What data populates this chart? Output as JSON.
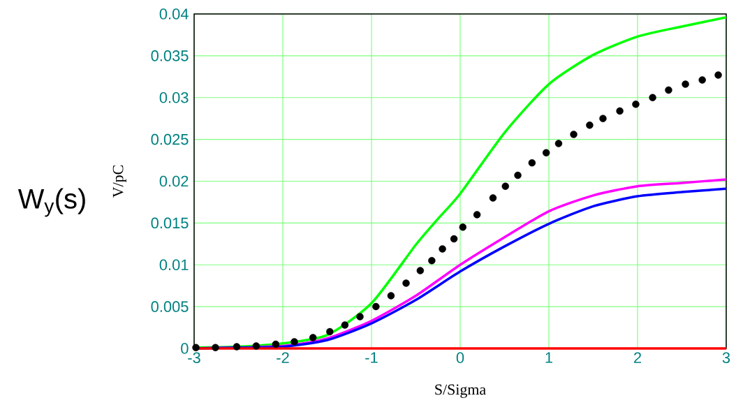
{
  "chart_data": {
    "type": "line",
    "xlabel": "S/Sigma",
    "ylabel": "V/pC",
    "annotations": [
      "W$_{y}$(s)"
    ],
    "xlim": [
      -3,
      3
    ],
    "ylim": [
      0,
      0.04
    ],
    "xticks": [
      -3,
      -2,
      -1,
      0,
      1,
      2,
      3
    ],
    "yticks": [
      0,
      0.005,
      0.01,
      0.015,
      0.02,
      0.025,
      0.03,
      0.035,
      0.04
    ],
    "grid": true,
    "series": [
      {
        "color": "#00ff00",
        "marker": "none",
        "line_style": "solid",
        "x": [
          -3,
          -2.5,
          -2,
          -1.5,
          -1,
          -0.5,
          -0.25,
          0,
          0.5,
          1,
          1.5,
          2,
          2.5,
          3
        ],
        "values": [
          0.0001,
          0.0002,
          0.0006,
          0.0016,
          0.0054,
          0.0124,
          0.0155,
          0.0185,
          0.0258,
          0.0316,
          0.0351,
          0.0373,
          0.0385,
          0.0396
        ]
      },
      {
        "color": "#ff00ff",
        "marker": "none",
        "line_style": "solid",
        "x": [
          -3,
          -2,
          -1.5,
          -1,
          -0.5,
          0,
          0.5,
          1,
          1.5,
          2,
          2.5,
          3
        ],
        "values": [
          0,
          0.0003,
          0.0012,
          0.0033,
          0.0063,
          0.01,
          0.0133,
          0.0164,
          0.0183,
          0.0194,
          0.0198,
          0.0202
        ]
      },
      {
        "color": "#0000ff",
        "marker": "none",
        "line_style": "solid",
        "x": [
          -3,
          -2.5,
          -2,
          -1.5,
          -1,
          -0.5,
          0,
          0.5,
          1,
          1.5,
          2,
          2.5,
          3
        ],
        "values": [
          0,
          0.0001,
          0.0002,
          0.001,
          0.003,
          0.0058,
          0.0092,
          0.0122,
          0.0149,
          0.017,
          0.0182,
          0.0187,
          0.0191
        ]
      },
      {
        "color": "#ff0000",
        "marker": "none",
        "line_style": "solid",
        "x": [
          -3,
          3
        ],
        "values": [
          0,
          0
        ]
      },
      {
        "type": "scatter",
        "color": "#000000",
        "marker": "circle",
        "x": [
          -2.98,
          -2.76,
          -2.52,
          -2.3,
          -2.08,
          -1.87,
          -1.66,
          -1.47,
          -1.3,
          -1.13,
          -0.95,
          -0.78,
          -0.61,
          -0.45,
          -0.32,
          -0.2,
          -0.07,
          0.03,
          0.19,
          0.37,
          0.51,
          0.65,
          0.81,
          0.97,
          1.11,
          1.28,
          1.46,
          1.61,
          1.8,
          1.98,
          2.17,
          2.35,
          2.54,
          2.73,
          2.91
        ],
        "values": [
          0.0001,
          0.0001,
          0.0002,
          0.0003,
          0.0005,
          0.0008,
          0.0013,
          0.002,
          0.0028,
          0.0038,
          0.005,
          0.0063,
          0.0078,
          0.0093,
          0.0105,
          0.0119,
          0.0131,
          0.0145,
          0.016,
          0.018,
          0.0194,
          0.0207,
          0.0222,
          0.0234,
          0.0245,
          0.0256,
          0.0267,
          0.0275,
          0.0284,
          0.0292,
          0.03,
          0.0309,
          0.0316,
          0.0321,
          0.0327
        ]
      }
    ]
  }
}
